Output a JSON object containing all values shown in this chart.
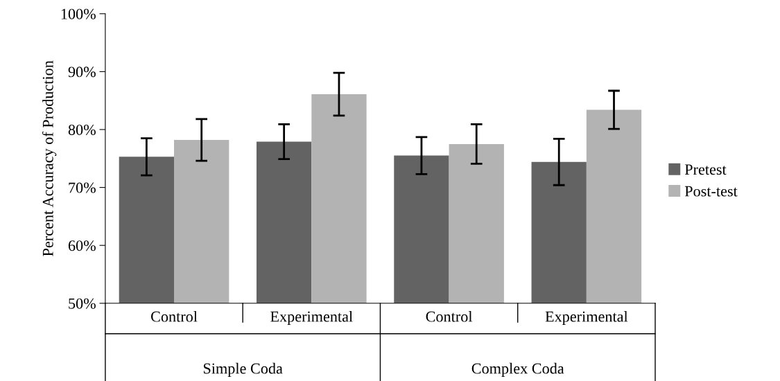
{
  "chart_data": {
    "type": "bar",
    "ylabel": "Percent Accuracy of Production",
    "categories": [
      "Control",
      "Experimental",
      "Control",
      "Experimental"
    ],
    "series": [
      {
        "name": "Pretest",
        "color": "#636363",
        "values": [
          75.3,
          77.9,
          75.5,
          74.4
        ],
        "errors": [
          3.2,
          3.0,
          3.2,
          4.0
        ]
      },
      {
        "name": "Post-test",
        "color": "#b3b3b3",
        "values": [
          78.2,
          86.1,
          77.5,
          83.4
        ],
        "errors": [
          3.6,
          3.7,
          3.4,
          3.3
        ]
      }
    ],
    "annotations": [
      "Simple Coda",
      "Complex Coda"
    ],
    "ylim": [
      50,
      100
    ],
    "yticks": [
      {
        "value": 50,
        "label": "50%"
      },
      {
        "value": 60,
        "label": "60%"
      },
      {
        "value": 70,
        "label": "70%"
      },
      {
        "value": 80,
        "label": "80%"
      },
      {
        "value": 90,
        "label": "90%"
      },
      {
        "value": 100,
        "label": "100%"
      }
    ],
    "grid": false,
    "legend": "right"
  }
}
